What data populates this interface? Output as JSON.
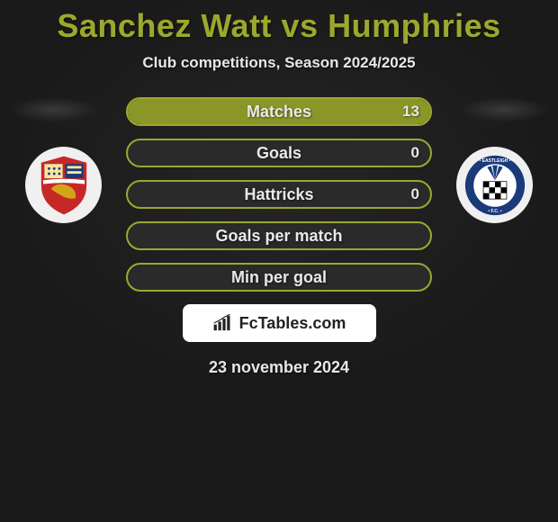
{
  "colors": {
    "bg_top": "#1a1a1a",
    "bg_mid": "#252525",
    "title": "#9ba82e",
    "text": "#e8e8e8",
    "halo": "#3a3a3a",
    "crest_bg": "#f0f0f0",
    "bar_border": "#9ba82e",
    "bar_bg": "#2a2a2a",
    "fill_left": "#8a9628",
    "fill_right": "#8a9628",
    "brand_bg": "#ffffff",
    "brand_text": "#222222"
  },
  "title_player1": "Sanchez Watt",
  "title_vs": " vs ",
  "title_player2": "Humphries",
  "subtitle": "Club competitions, Season 2024/2025",
  "crest_left": {
    "shield_fill": "#c62828",
    "top_left": "#f5e6a0",
    "top_right": "#1a3a7a",
    "lion": "#d4a418",
    "stripe": "#ffffff"
  },
  "crest_right": {
    "ring": "#1a3a7a",
    "ring_text_color": "#ffffff",
    "inner_bg": "#ffffff",
    "checker": "#000000",
    "fan": "#1a3a7a"
  },
  "bars": [
    {
      "label": "Matches",
      "left": "",
      "right": "13",
      "fill_left_pct": 0,
      "fill_right_pct": 100
    },
    {
      "label": "Goals",
      "left": "",
      "right": "0",
      "fill_left_pct": 0,
      "fill_right_pct": 0
    },
    {
      "label": "Hattricks",
      "left": "",
      "right": "0",
      "fill_left_pct": 0,
      "fill_right_pct": 0
    },
    {
      "label": "Goals per match",
      "left": "",
      "right": "",
      "fill_left_pct": 0,
      "fill_right_pct": 0
    },
    {
      "label": "Min per goal",
      "left": "",
      "right": "",
      "fill_left_pct": 0,
      "fill_right_pct": 0
    }
  ],
  "branding": "FcTables.com",
  "date": "23 november 2024"
}
